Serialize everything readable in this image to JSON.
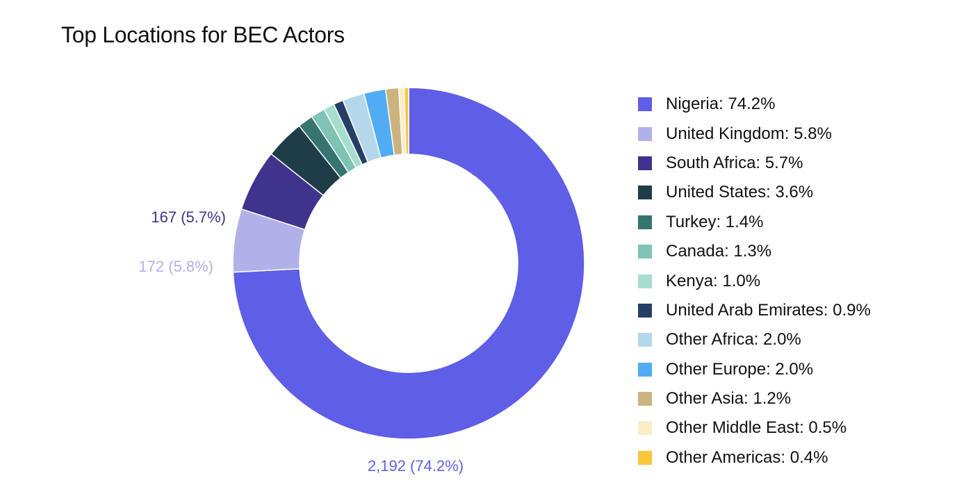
{
  "chart_data": {
    "type": "pie",
    "title": "Top Locations for BEC Actors",
    "donut": true,
    "slices": [
      {
        "label": "Nigeria",
        "value": 74.2,
        "legend": "Nigeria: 74.2%",
        "color": "#5f5ee6"
      },
      {
        "label": "United Kingdom",
        "value": 5.8,
        "legend": "United Kingdom: 5.8%",
        "color": "#b1b1ea"
      },
      {
        "label": "South Africa",
        "value": 5.7,
        "legend": "South Africa: 5.7%",
        "color": "#3f338d"
      },
      {
        "label": "United States",
        "value": 3.6,
        "legend": "United States: 3.6%",
        "color": "#1f3d48"
      },
      {
        "label": "Turkey",
        "value": 1.4,
        "legend": "Turkey: 1.4%",
        "color": "#36746f"
      },
      {
        "label": "Canada",
        "value": 1.3,
        "legend": "Canada: 1.3%",
        "color": "#7fc3b4"
      },
      {
        "label": "Kenya",
        "value": 1.0,
        "legend": "Kenya: 1.0%",
        "color": "#a5dece"
      },
      {
        "label": "United Arab Emirates",
        "value": 0.9,
        "legend": "United Arab Emirates: 0.9%",
        "color": "#263f66"
      },
      {
        "label": "Other Africa",
        "value": 2.0,
        "legend": "Other Africa: 2.0%",
        "color": "#b5d7eb"
      },
      {
        "label": "Other Europe",
        "value": 2.0,
        "legend": "Other Europe: 2.0%",
        "color": "#51acf3"
      },
      {
        "label": "Other Asia",
        "value": 1.2,
        "legend": "Other Asia: 1.2%",
        "color": "#ccb37e"
      },
      {
        "label": "Other Middle East",
        "value": 0.5,
        "legend": "Other Middle East: 0.5%",
        "color": "#fdedc7"
      },
      {
        "label": "Other Americas",
        "value": 0.4,
        "legend": "Other Americas: 0.4%",
        "color": "#fac63c"
      }
    ],
    "data_labels": [
      {
        "slice": "Nigeria",
        "text": "2,192 (74.2%)",
        "color": "#5f5ee6"
      },
      {
        "slice": "United Kingdom",
        "text": "172 (5.8%)",
        "color": "#b1b1ea"
      },
      {
        "slice": "South Africa",
        "text": "167 (5.7%)",
        "color": "#3f338d"
      }
    ],
    "legend_position": "right"
  }
}
